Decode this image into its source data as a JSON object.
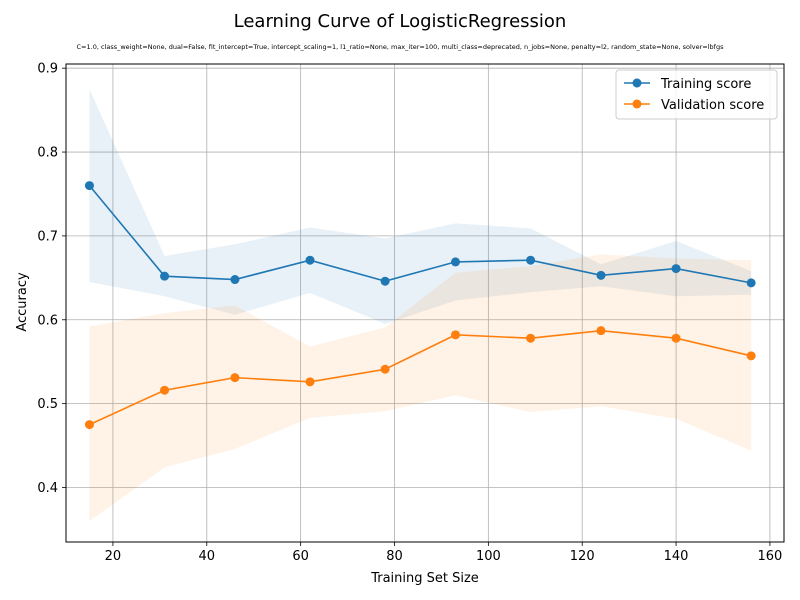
{
  "chart_data": {
    "type": "line",
    "title": "Learning Curve of LogisticRegression",
    "subtitle": "C=1.0, class_weight=None, dual=False, fit_intercept=True, intercept_scaling=1, l1_ratio=None, max_iter=100, multi_class=deprecated, n_jobs=None, penalty=l2, random_state=None, solver=lbfgs",
    "xlabel": "Training Set Size",
    "ylabel": "Accuracy",
    "xlim": [
      10,
      163
    ],
    "ylim": [
      0.335,
      0.905
    ],
    "xticks": [
      20,
      40,
      60,
      80,
      100,
      120,
      140,
      160
    ],
    "yticks": [
      0.4,
      0.5,
      0.6,
      0.7,
      0.8,
      0.9
    ],
    "grid": true,
    "legend_position": "top-right",
    "x": [
      15,
      31,
      46,
      62,
      78,
      93,
      109,
      124,
      140,
      156
    ],
    "series": [
      {
        "name": "Training score",
        "color": "#1f77b4",
        "values": [
          0.76,
          0.652,
          0.648,
          0.671,
          0.646,
          0.669,
          0.671,
          0.653,
          0.661,
          0.644
        ],
        "band_upper": [
          0.875,
          0.676,
          0.69,
          0.71,
          0.697,
          0.715,
          0.709,
          0.666,
          0.694,
          0.658
        ],
        "band_lower": [
          0.645,
          0.628,
          0.606,
          0.632,
          0.595,
          0.623,
          0.633,
          0.64,
          0.628,
          0.63
        ]
      },
      {
        "name": "Validation score",
        "color": "#ff7f0e",
        "values": [
          0.475,
          0.516,
          0.531,
          0.526,
          0.541,
          0.582,
          0.578,
          0.587,
          0.578,
          0.557
        ],
        "band_upper": [
          0.592,
          0.608,
          0.617,
          0.568,
          0.591,
          0.656,
          0.664,
          0.678,
          0.673,
          0.671
        ],
        "band_lower": [
          0.36,
          0.424,
          0.446,
          0.483,
          0.491,
          0.51,
          0.49,
          0.497,
          0.482,
          0.444
        ]
      }
    ]
  }
}
